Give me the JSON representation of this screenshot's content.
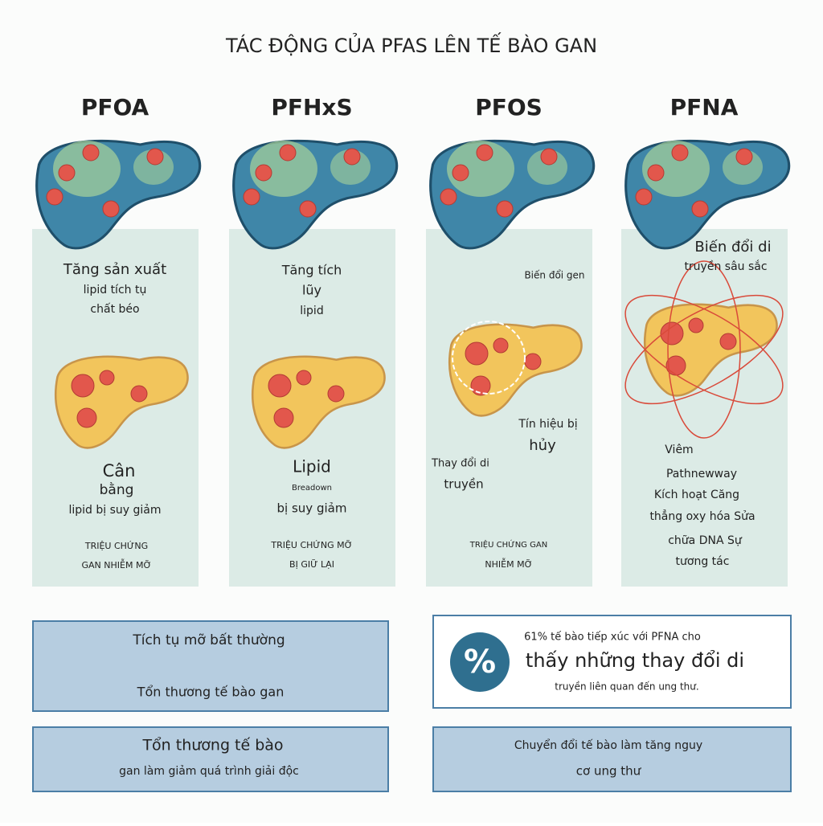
{
  "title": "TÁC ĐỘNG CỦA PFAS LÊN TẾ BÀO GAN",
  "columns": [
    {
      "name": "PFOA",
      "texts": [
        "Tăng sản xuất",
        "lipid tích tụ",
        "chất béo",
        "Cân",
        "bằng",
        "lipid bị suy giảm",
        "TRIỆU CHỨNG",
        "GAN NHIỄM MỠ"
      ]
    },
    {
      "name": "PFHxS",
      "texts": [
        "Tăng tích",
        "lũy",
        "lipid",
        "Lipid",
        "Breadown",
        "bị suy giảm",
        "TRIỆU CHỨNG MỠ",
        "BỊ GIỮ LẠI"
      ]
    },
    {
      "name": "PFOS",
      "texts": [
        "Biến đổi gen",
        "Tín hiệu bị",
        "hủy",
        "Thay đổi di",
        "truyền",
        "TRIỆU CHỨNG GAN",
        "NHIỄM MỠ"
      ]
    },
    {
      "name": "PFNA",
      "texts": [
        "Biến đổi di",
        "truyền sâu sắc",
        "Viêm",
        "Pathnewway",
        "Kích hoạt Căng",
        "thẳng oxy hóa Sửa",
        "chữa DNA Sự",
        "tương tác"
      ]
    }
  ],
  "boxes": [
    {
      "lines": [
        "Tích tụ mỡ bất thường",
        "Tổn thương tế bào gan"
      ]
    },
    {
      "lines": [
        "Tổn thương tế bào",
        "gan làm giảm quá trình giải độc"
      ]
    },
    {
      "lines": [
        "Chuyển đổi tế bào làm tăng nguy",
        "cơ ung thư"
      ]
    }
  ],
  "stat": {
    "icon": "%",
    "lines": [
      "61% tế bào tiếp xúc với PFNA cho",
      "thấy những thay đổi di",
      "truyền liên quan đến ung thư."
    ]
  }
}
